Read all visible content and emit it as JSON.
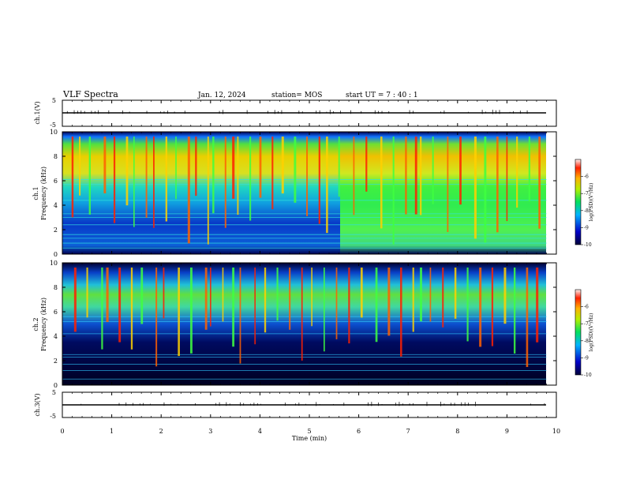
{
  "header": {
    "title": "VLF Spectra",
    "date": "Jan. 12, 2024",
    "station": "station= MOS",
    "start": "start  UT =   7 : 40 : 1"
  },
  "chart_data": {
    "type": "heatmap",
    "title": "VLF Spectra",
    "xlabel": "Time  (min)",
    "xlim": [
      0,
      10
    ],
    "x_ticks": [
      "0",
      "1",
      "2",
      "3",
      "4",
      "5",
      "6",
      "7",
      "8",
      "9",
      "10"
    ],
    "data_end_min": 9.8,
    "panels": [
      {
        "name": "ch1-voltage",
        "ylabel": "ch.1(V)",
        "ylim": [
          -5,
          5
        ],
        "y_ticks": [
          "5",
          "-5"
        ],
        "baseline": 0
      },
      {
        "name": "ch1-spectrogram",
        "ylabel": "ch.1",
        "ylabel2": "Frequency (kHz)",
        "ylim": [
          0,
          10
        ],
        "y_ticks": [
          "0",
          "2",
          "4",
          "6",
          "8",
          "10"
        ],
        "colorbar": {
          "min": -10,
          "max": -5,
          "ticks": [
            "-6",
            "-7",
            "-8",
            "-9",
            "-10"
          ],
          "label": "log(PSD)(V²/Hz)"
        },
        "bursts_min": [
          0.2,
          0.35,
          0.55,
          0.85,
          1.05,
          1.3,
          1.45,
          1.7,
          1.85,
          2.1,
          2.3,
          2.55,
          2.7,
          2.95,
          3.05,
          3.3,
          3.45,
          3.55,
          3.8,
          4.0,
          4.25,
          4.45,
          4.7,
          4.95,
          5.2,
          5.35,
          5.6,
          5.9,
          6.15,
          6.45,
          6.7,
          6.95,
          7.15,
          7.25,
          7.5,
          7.8,
          8.05,
          8.35,
          8.55,
          8.8,
          9.0,
          9.2,
          9.45,
          9.65
        ]
      },
      {
        "name": "ch2-spectrogram",
        "ylabel": "ch.2",
        "ylabel2": "Frequency (kHz)",
        "ylim": [
          0,
          10
        ],
        "y_ticks": [
          "0",
          "2",
          "4",
          "6",
          "8",
          "10"
        ],
        "colorbar": {
          "min": -10,
          "max": -5,
          "ticks": [
            "-6",
            "-7",
            "-8",
            "-9",
            "-10"
          ],
          "label": "log(PSD)(V²/Hz)"
        },
        "bursts_min": [
          0.25,
          0.5,
          0.8,
          0.9,
          1.15,
          1.4,
          1.6,
          1.9,
          2.05,
          2.35,
          2.6,
          2.9,
          3.0,
          3.25,
          3.45,
          3.6,
          3.9,
          4.1,
          4.35,
          4.6,
          4.85,
          5.05,
          5.3,
          5.55,
          5.8,
          6.05,
          6.35,
          6.6,
          6.85,
          7.1,
          7.25,
          7.45,
          7.7,
          7.95,
          8.2,
          8.45,
          8.7,
          8.95,
          9.15,
          9.4,
          9.6
        ]
      },
      {
        "name": "ch3-voltage",
        "ylabel": "ch.3(V)",
        "ylim": [
          -5,
          5
        ],
        "y_ticks": [
          "5",
          "-5"
        ],
        "baseline": 0
      }
    ]
  }
}
